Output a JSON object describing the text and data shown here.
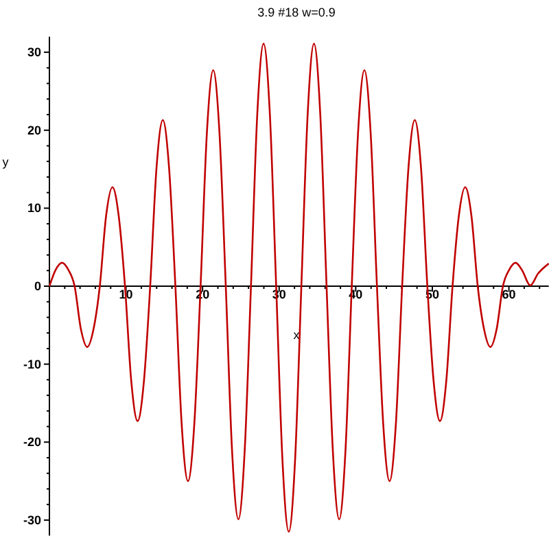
{
  "chart_data": {
    "type": "line",
    "title": "3.9 #18 w=0.9",
    "xlabel": "x",
    "ylabel": "y",
    "xlim": [
      0,
      65.2
    ],
    "ylim": [
      -32,
      32
    ],
    "xticks": [
      {
        "value": 2,
        "label": null
      },
      {
        "value": 4,
        "label": null
      },
      {
        "value": 6,
        "label": null
      },
      {
        "value": 8,
        "label": null
      },
      10,
      {
        "value": 12,
        "label": null
      },
      {
        "value": 14,
        "label": null
      },
      {
        "value": 16,
        "label": null
      },
      {
        "value": 18,
        "label": null
      },
      20,
      {
        "value": 22,
        "label": null
      },
      {
        "value": 24,
        "label": null
      },
      {
        "value": 26,
        "label": null
      },
      {
        "value": 28,
        "label": null
      },
      30,
      {
        "value": 32,
        "label": null
      },
      {
        "value": 34,
        "label": null
      },
      {
        "value": 36,
        "label": null
      },
      {
        "value": 38,
        "label": null
      },
      40,
      {
        "value": 42,
        "label": null
      },
      {
        "value": 44,
        "label": null
      },
      {
        "value": 46,
        "label": null
      },
      {
        "value": 48,
        "label": null
      },
      50,
      {
        "value": 52,
        "label": null
      },
      {
        "value": 54,
        "label": null
      },
      {
        "value": 56,
        "label": null
      },
      {
        "value": 58,
        "label": null
      },
      60,
      {
        "value": 62,
        "label": null
      },
      {
        "value": 64,
        "label": null
      }
    ],
    "yticks": [
      -30,
      {
        "value": -28,
        "label": null
      },
      {
        "value": -26,
        "label": null
      },
      {
        "value": -24,
        "label": null
      },
      {
        "value": -22,
        "label": null
      },
      -20,
      {
        "value": -18,
        "label": null
      },
      {
        "value": -16,
        "label": null
      },
      {
        "value": -14,
        "label": null
      },
      {
        "value": -12,
        "label": null
      },
      -10,
      {
        "value": -8,
        "label": null
      },
      {
        "value": -6,
        "label": null
      },
      {
        "value": -4,
        "label": null
      },
      {
        "value": -2,
        "label": null
      },
      0,
      {
        "value": 2,
        "label": null
      },
      {
        "value": 4,
        "label": null
      },
      {
        "value": 6,
        "label": null
      },
      {
        "value": 8,
        "label": null
      },
      10,
      {
        "value": 12,
        "label": null
      },
      {
        "value": 14,
        "label": null
      },
      {
        "value": 16,
        "label": null
      },
      {
        "value": 18,
        "label": null
      },
      20,
      {
        "value": 22,
        "label": null
      },
      {
        "value": 24,
        "label": null
      },
      {
        "value": 26,
        "label": null
      },
      {
        "value": 28,
        "label": null
      },
      30
    ],
    "marker": "none",
    "line_style": "solid",
    "series": [
      {
        "color": "#c00000",
        "x": [
          0,
          0.82,
          1.65,
          2.47,
          3.29,
          4.11,
          4.94,
          5.76,
          6.58,
          7.4,
          8.23,
          9.05,
          9.87,
          10.69,
          11.52,
          12.34,
          13.16,
          13.98,
          14.81,
          15.63,
          16.45,
          17.27,
          18.1,
          18.92,
          19.74,
          20.56,
          21.39,
          22.21,
          23.03,
          23.85,
          24.68,
          25.5,
          26.32,
          27.14,
          27.97,
          28.79,
          29.61,
          30.43,
          31.26,
          32.08,
          32.9,
          33.72,
          34.55,
          35.37,
          36.19,
          37.01,
          37.84,
          38.66,
          39.48,
          40.3,
          41.13,
          41.95,
          42.77,
          43.59,
          44.42,
          45.24,
          46.06,
          46.88,
          47.71,
          48.53,
          49.35,
          50.17,
          51,
          51.82,
          52.64,
          53.46,
          54.29,
          55.11,
          55.93,
          56.75,
          57.58,
          58.4,
          59.22,
          60.04,
          60.87,
          61.69,
          62.8,
          63.8,
          65.2
        ],
        "values": [
          0,
          2.1,
          3,
          2.1,
          0,
          -5.5,
          -7.8,
          -5.5,
          0,
          9,
          12.7,
          9,
          0,
          -12.2,
          -17.3,
          -12.2,
          0,
          15.1,
          21.3,
          15.1,
          0,
          -17.7,
          -25,
          -17.7,
          0,
          19.6,
          27.7,
          19.6,
          0,
          -21.1,
          -29.9,
          -21.1,
          0,
          22,
          31.1,
          22,
          0,
          -22.3,
          -31.5,
          -22.3,
          0,
          22,
          31.1,
          22,
          0,
          -21.1,
          -29.9,
          -21.1,
          0,
          19.6,
          27.7,
          19.6,
          0,
          -17.7,
          -25,
          -17.7,
          0,
          15.1,
          21.3,
          15.1,
          0,
          -12.2,
          -17.3,
          -12.2,
          0,
          9,
          12.7,
          9,
          0,
          -5.5,
          -7.8,
          -5.5,
          0,
          2.1,
          3,
          2.1,
          0.1,
          1.6,
          2.9
        ]
      }
    ]
  }
}
